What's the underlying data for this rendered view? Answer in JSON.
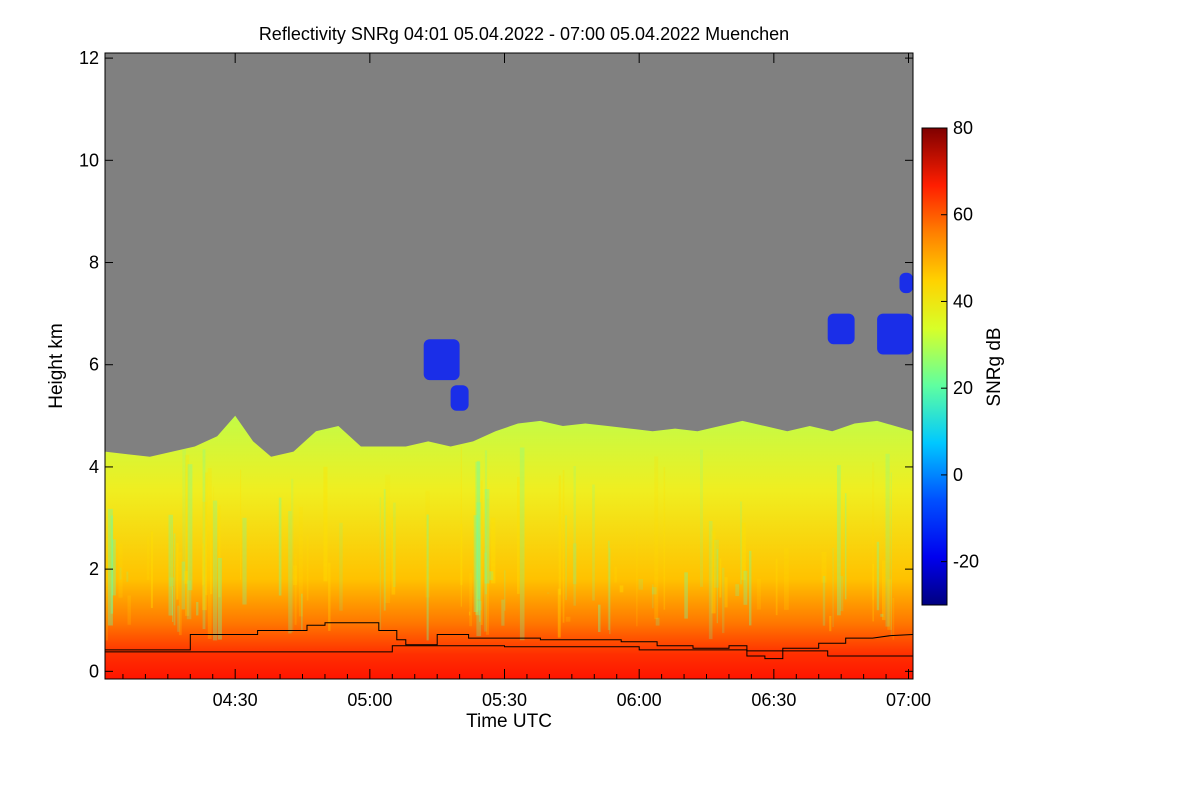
{
  "chart_data": {
    "type": "heatmap",
    "title": "Reflectivity SNRg   04:01 05.04.2022 - 07:00 05.04.2022 Muenchen",
    "xlabel": "Time UTC",
    "ylabel": "Height km",
    "xlim_minutes": [
      241,
      421
    ],
    "ylim": [
      -0.15,
      12.1
    ],
    "x_ticks": [
      {
        "label": "04:30",
        "minute": 270
      },
      {
        "label": "05:00",
        "minute": 300
      },
      {
        "label": "05:30",
        "minute": 330
      },
      {
        "label": "06:00",
        "minute": 360
      },
      {
        "label": "06:30",
        "minute": 390
      },
      {
        "label": "07:00",
        "minute": 420
      }
    ],
    "y_ticks": [
      0,
      2,
      4,
      6,
      8,
      10,
      12
    ],
    "colorbar": {
      "label": "SNRg dB",
      "range": [
        -30,
        80
      ],
      "ticks": [
        -20,
        0,
        20,
        40,
        60,
        80
      ]
    },
    "colors": {
      "no_data": "#808080",
      "frame": "#000000"
    },
    "cloud_top_km": [
      [
        241,
        4.3
      ],
      [
        246,
        4.25
      ],
      [
        251,
        4.2
      ],
      [
        256,
        4.3
      ],
      [
        261,
        4.4
      ],
      [
        266,
        4.6
      ],
      [
        270,
        5.0
      ],
      [
        274,
        4.5
      ],
      [
        278,
        4.2
      ],
      [
        283,
        4.3
      ],
      [
        288,
        4.7
      ],
      [
        293,
        4.8
      ],
      [
        298,
        4.4
      ],
      [
        303,
        4.4
      ],
      [
        308,
        4.4
      ],
      [
        313,
        4.5
      ],
      [
        318,
        4.4
      ],
      [
        323,
        4.5
      ],
      [
        328,
        4.7
      ],
      [
        333,
        4.85
      ],
      [
        338,
        4.9
      ],
      [
        343,
        4.8
      ],
      [
        348,
        4.85
      ],
      [
        353,
        4.8
      ],
      [
        358,
        4.75
      ],
      [
        363,
        4.7
      ],
      [
        368,
        4.75
      ],
      [
        373,
        4.7
      ],
      [
        378,
        4.8
      ],
      [
        383,
        4.9
      ],
      [
        388,
        4.8
      ],
      [
        393,
        4.7
      ],
      [
        398,
        4.8
      ],
      [
        403,
        4.7
      ],
      [
        408,
        4.85
      ],
      [
        413,
        4.9
      ],
      [
        417,
        4.8
      ],
      [
        421,
        4.7
      ]
    ],
    "upper_cloud_patches": [
      {
        "t0": 312,
        "t1": 320,
        "h0": 5.7,
        "h1": 6.5
      },
      {
        "t0": 318,
        "t1": 322,
        "h0": 5.1,
        "h1": 5.6
      },
      {
        "t0": 402,
        "t1": 408,
        "h0": 6.4,
        "h1": 7.0
      },
      {
        "t0": 413,
        "t1": 421,
        "h0": 6.2,
        "h1": 7.0
      },
      {
        "t0": 418,
        "t1": 421,
        "h0": 7.4,
        "h1": 7.8
      }
    ],
    "boundary_line_1_km": [
      [
        241,
        0.42
      ],
      [
        260,
        0.42
      ],
      [
        260,
        0.72
      ],
      [
        275,
        0.72
      ],
      [
        275,
        0.8
      ],
      [
        286,
        0.8
      ],
      [
        286,
        0.9
      ],
      [
        290,
        0.9
      ],
      [
        290,
        0.95
      ],
      [
        302,
        0.95
      ],
      [
        302,
        0.8
      ],
      [
        306,
        0.8
      ],
      [
        306,
        0.62
      ],
      [
        308,
        0.62
      ],
      [
        308,
        0.52
      ],
      [
        315,
        0.52
      ],
      [
        315,
        0.72
      ],
      [
        322,
        0.72
      ],
      [
        322,
        0.65
      ],
      [
        338,
        0.65
      ],
      [
        338,
        0.62
      ],
      [
        356,
        0.62
      ],
      [
        356,
        0.58
      ],
      [
        364,
        0.58
      ],
      [
        364,
        0.5
      ],
      [
        372,
        0.5
      ],
      [
        372,
        0.45
      ],
      [
        380,
        0.45
      ],
      [
        380,
        0.5
      ],
      [
        384,
        0.5
      ],
      [
        384,
        0.3
      ],
      [
        388,
        0.3
      ],
      [
        388,
        0.25
      ],
      [
        392,
        0.25
      ],
      [
        392,
        0.45
      ],
      [
        400,
        0.45
      ],
      [
        400,
        0.55
      ],
      [
        406,
        0.55
      ],
      [
        406,
        0.65
      ],
      [
        412,
        0.65
      ],
      [
        416,
        0.7
      ],
      [
        421,
        0.72
      ]
    ],
    "boundary_line_2_km": [
      [
        241,
        0.38
      ],
      [
        305,
        0.38
      ],
      [
        305,
        0.5
      ],
      [
        330,
        0.5
      ],
      [
        330,
        0.48
      ],
      [
        360,
        0.48
      ],
      [
        360,
        0.42
      ],
      [
        384,
        0.42
      ],
      [
        384,
        0.4
      ],
      [
        402,
        0.4
      ],
      [
        402,
        0.3
      ],
      [
        421,
        0.3
      ]
    ]
  }
}
